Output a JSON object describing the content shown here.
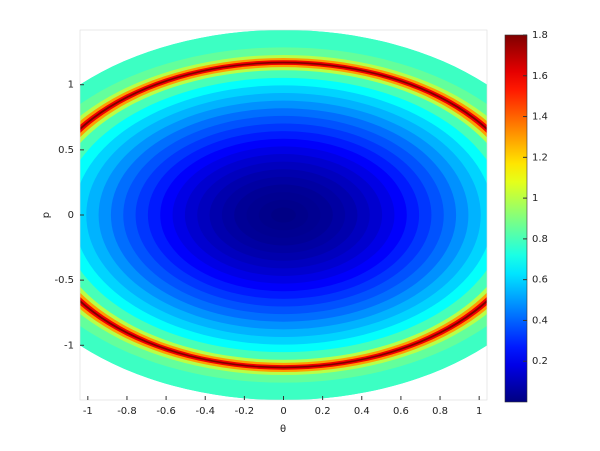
{
  "chart_data": {
    "type": "contourf",
    "xlabel": "θ",
    "ylabel": "p",
    "xlim": [
      -1.04,
      1.04
    ],
    "ylim": [
      -1.42,
      1.42
    ],
    "xticks": [
      -1,
      -0.8,
      -0.6,
      -0.4,
      -0.2,
      0,
      0.2,
      0.4,
      0.6,
      0.8,
      1
    ],
    "yticks": [
      -1,
      -0.5,
      0,
      0.5,
      1
    ],
    "domain": {
      "theta_radius": 1.465,
      "p_radius": 1.42
    },
    "field": {
      "theta_radius": 1.26,
      "p_radius": 1.17,
      "r": [
        1.6,
        1.3,
        1.1,
        1.05,
        1.03,
        1.015,
        1.005,
        0.995,
        0.985,
        0.97,
        0.95,
        0.9,
        0.85,
        0.8,
        0.75,
        0.7,
        0.65,
        0.6,
        0.55,
        0.5,
        0.45,
        0.4,
        0.35,
        0.3,
        0.25,
        0.2,
        0.15,
        0.1,
        0.05
      ],
      "values": [
        0.72,
        0.78,
        0.85,
        1.0,
        1.3,
        1.6,
        1.8,
        1.6,
        1.3,
        1.0,
        0.8,
        0.68,
        0.6,
        0.54,
        0.48,
        0.42,
        0.37,
        0.32,
        0.27,
        0.22,
        0.18,
        0.14,
        0.11,
        0.08,
        0.06,
        0.04,
        0.03,
        0.02,
        0.01
      ]
    },
    "colormap": "jet",
    "clim": [
      0,
      1.8
    ],
    "cticks": [
      0.2,
      0.4,
      0.6,
      0.8,
      1,
      1.2,
      1.4,
      1.6,
      1.8
    ]
  }
}
